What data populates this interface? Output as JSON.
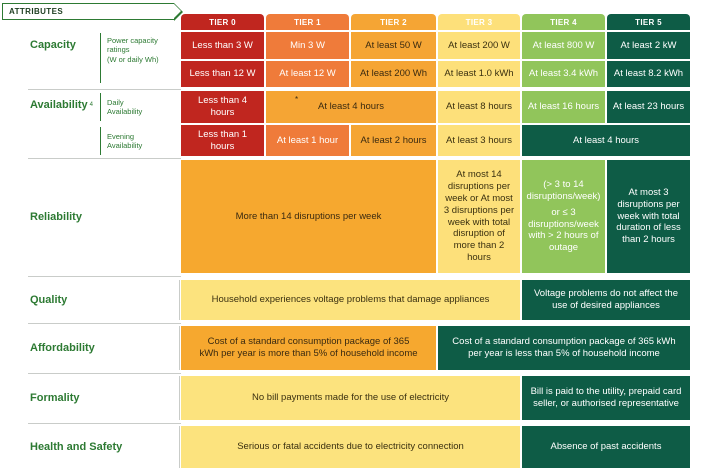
{
  "header": {
    "attributes": "ATTRIBUTES",
    "tiers": [
      "TIER 0",
      "TIER 1",
      "TIER 2",
      "TIER 3",
      "TIER 4",
      "TIER 5"
    ]
  },
  "capacity": {
    "label": "Capacity",
    "sublabel": "Power capacity ratings\n(W or daily Wh)",
    "row1": [
      "Less than 3 W",
      "Min 3 W",
      "At least 50 W",
      "At least 200 W",
      "At least 800 W",
      "At least 2 kW"
    ],
    "row2": [
      "Less than 12 W",
      "At least 12 W",
      "At least 200 Wh",
      "At least 1.0 kWh",
      "At least 3.4 kWh",
      "At least 8.2 kWh"
    ]
  },
  "availability": {
    "label": "Availability",
    "footnote": "4",
    "daily_label": "Daily\nAvailability",
    "evening_label": "Evening\nAvailability",
    "daily": {
      "t0": "Less than 4 hours",
      "t12_marker": "*",
      "t12": "At least 4 hours",
      "t3": "At least 8 hours",
      "t4": "At least 16 hours",
      "t5": "At least 23 hours"
    },
    "evening": {
      "t0": "Less than 1 hours",
      "t1": "At least 1 hour",
      "t2": "At least 2 hours",
      "t3": "At least 3 hours",
      "t45": "At least 4 hours"
    }
  },
  "reliability": {
    "label": "Reliability",
    "t02": "More than 14 disruptions per week",
    "t3": "At most 14 disruptions per week or At most 3 disruptions per week with total disruption of more than 2 hours",
    "t4_a": "(> 3 to 14 disruptions/week)",
    "t4_b": "or  ≤ 3 disruptions/week with > 2 hours of outage",
    "t5": "At most 3 disruptions per week with total duration of less than 2 hours"
  },
  "quality": {
    "label": "Quality",
    "t03": "Household experiences voltage problems that damage appliances",
    "t45": "Voltage problems do not affect the use of desired appliances"
  },
  "affordability": {
    "label": "Affordability",
    "t02": "Cost of a standard consumption package of 365 kWh per year is more than 5% of household income",
    "t35": "Cost of a standard consumption package of 365 kWh per year is less than 5% of household income"
  },
  "formality": {
    "label": "Formality",
    "t03": "No bill payments made for the use of electricity",
    "t45": "Bill is paid to the utility, prepaid card seller, or authorised representative"
  },
  "health": {
    "label": "Health and Safety",
    "t03": "Serious or fatal accidents due to electricity connection",
    "t45": "Absence of past accidents"
  },
  "colors": {
    "tier0": "#c0261f",
    "tier1": "#ef7b3a",
    "tier2": "#f5a534",
    "tier3": "#fde07a",
    "tier4": "#91c55b",
    "tier5": "#0e5c46",
    "label_green": "#2d7a33"
  }
}
